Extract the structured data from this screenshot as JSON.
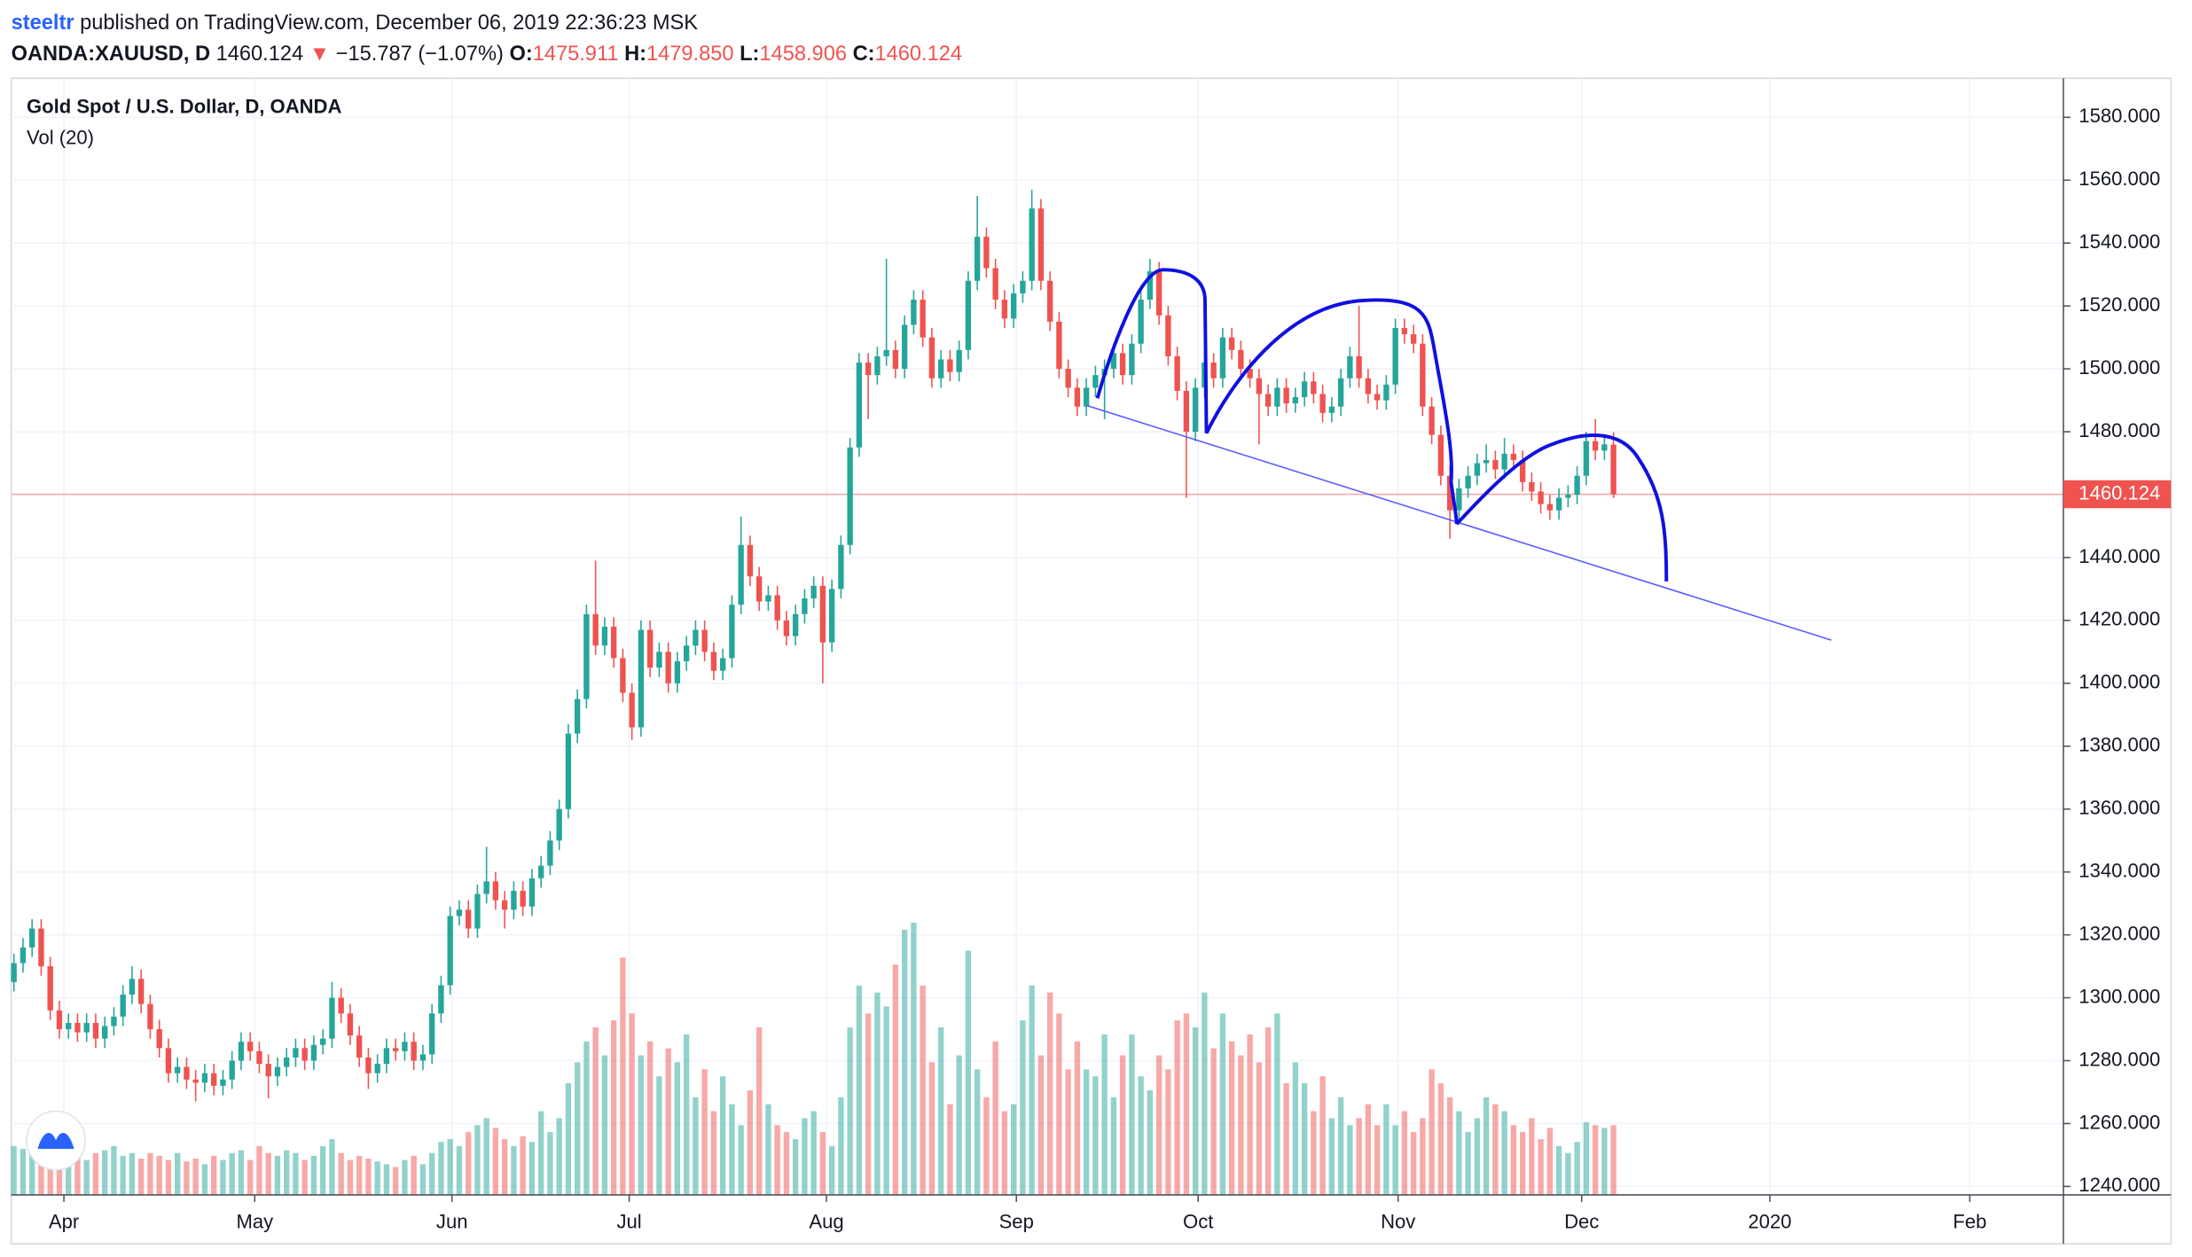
{
  "header": {
    "author": "steeltr",
    "published": "published on TradingView.com, December 06, 2019 22:36:23 MSK",
    "symbol": "OANDA:XAUUSD, D",
    "last": "1460.124",
    "arrow": "▼",
    "change": "−15.787 (−1.07%)",
    "o_label": "O:",
    "open": "1475.911",
    "h_label": "H:",
    "high": "1479.850",
    "l_label": "L:",
    "low": "1458.906",
    "c_label": "C:",
    "close": "1460.124"
  },
  "chart_data": {
    "type": "candlestick",
    "title": "Gold Spot / U.S. Dollar, D, OANDA",
    "volume_label": "Vol (20)",
    "up_color": "#26a69a",
    "down_color": "#ef5350",
    "last_price_color": "#ef5350",
    "grid": true,
    "xlim": [
      -0.3,
      225.5
    ],
    "xticks": [
      {
        "value": 5.5,
        "label": "Apr"
      },
      {
        "value": 26.5,
        "label": "May"
      },
      {
        "value": 48.2,
        "label": "Jun"
      },
      {
        "value": 67.7,
        "label": "Jul"
      },
      {
        "value": 89.4,
        "label": "Aug"
      },
      {
        "value": 110.3,
        "label": "Sep"
      },
      {
        "value": 130.3,
        "label": "Oct"
      },
      {
        "value": 152.3,
        "label": "Nov"
      },
      {
        "value": 172.5,
        "label": "Dec"
      },
      {
        "value": 193.2,
        "label": "2020"
      },
      {
        "value": 215.2,
        "label": "Feb"
      }
    ],
    "ylim": [
      1237.3,
      1592.4
    ],
    "yticks": [
      {
        "value": 1240,
        "label": "1240.000"
      },
      {
        "value": 1260,
        "label": "1260.000"
      },
      {
        "value": 1280,
        "label": "1280.000"
      },
      {
        "value": 1300,
        "label": "1300.000"
      },
      {
        "value": 1320,
        "label": "1320.000"
      },
      {
        "value": 1340,
        "label": "1340.000"
      },
      {
        "value": 1360,
        "label": "1360.000"
      },
      {
        "value": 1380,
        "label": "1380.000"
      },
      {
        "value": 1400,
        "label": "1400.000"
      },
      {
        "value": 1420,
        "label": "1420.000"
      },
      {
        "value": 1440,
        "label": "1440.000"
      },
      {
        "value": 1460,
        "label": "1460.000"
      },
      {
        "value": 1480,
        "label": "1480.000"
      },
      {
        "value": 1500,
        "label": "1500.000"
      },
      {
        "value": 1520,
        "label": "1520.000"
      },
      {
        "value": 1540,
        "label": "1540.000"
      },
      {
        "value": 1560,
        "label": "1560.000"
      },
      {
        "value": 1580,
        "label": "1580.000"
      }
    ],
    "vlim": [
      0,
      800
    ],
    "candles": [
      [
        1305,
        1314,
        1302,
        1311
      ],
      [
        1311,
        1319,
        1308,
        1316
      ],
      [
        1316,
        1325,
        1313,
        1322
      ],
      [
        1322,
        1325,
        1307,
        1310
      ],
      [
        1310,
        1313,
        1293,
        1296
      ],
      [
        1296,
        1299,
        1287,
        1290
      ],
      [
        1290,
        1295,
        1287,
        1292
      ],
      [
        1292,
        1295,
        1286,
        1289
      ],
      [
        1289,
        1295,
        1286,
        1292
      ],
      [
        1292,
        1295,
        1284,
        1287
      ],
      [
        1287,
        1294,
        1284,
        1291
      ],
      [
        1291,
        1297,
        1288,
        1294
      ],
      [
        1294,
        1304,
        1291,
        1301
      ],
      [
        1301,
        1310,
        1298,
        1306
      ],
      [
        1306,
        1309,
        1295,
        1298
      ],
      [
        1298,
        1301,
        1287,
        1290
      ],
      [
        1290,
        1293,
        1281,
        1284
      ],
      [
        1284,
        1287,
        1273,
        1276
      ],
      [
        1276,
        1281,
        1273,
        1278
      ],
      [
        1278,
        1281,
        1271,
        1274
      ],
      [
        1274,
        1277,
        1267,
        1273
      ],
      [
        1273,
        1279,
        1270,
        1276
      ],
      [
        1276,
        1279,
        1269,
        1272
      ],
      [
        1272,
        1277,
        1269,
        1274
      ],
      [
        1274,
        1283,
        1271,
        1280
      ],
      [
        1280,
        1289,
        1277,
        1286
      ],
      [
        1286,
        1289,
        1280,
        1283
      ],
      [
        1283,
        1286,
        1276,
        1279
      ],
      [
        1279,
        1282,
        1268,
        1275
      ],
      [
        1275,
        1281,
        1272,
        1278
      ],
      [
        1278,
        1284,
        1275,
        1281
      ],
      [
        1281,
        1287,
        1278,
        1284
      ],
      [
        1284,
        1287,
        1277,
        1280
      ],
      [
        1280,
        1288,
        1277,
        1285
      ],
      [
        1285,
        1290,
        1282,
        1287
      ],
      [
        1287,
        1305,
        1284,
        1300
      ],
      [
        1300,
        1303,
        1292,
        1295
      ],
      [
        1295,
        1298,
        1285,
        1288
      ],
      [
        1288,
        1291,
        1278,
        1281
      ],
      [
        1281,
        1284,
        1271,
        1276
      ],
      [
        1276,
        1282,
        1273,
        1279
      ],
      [
        1279,
        1287,
        1276,
        1284
      ],
      [
        1284,
        1287,
        1280,
        1283
      ],
      [
        1283,
        1289,
        1280,
        1286
      ],
      [
        1286,
        1289,
        1277,
        1280
      ],
      [
        1280,
        1285,
        1277,
        1282
      ],
      [
        1282,
        1298,
        1279,
        1295
      ],
      [
        1295,
        1307,
        1292,
        1304
      ],
      [
        1304,
        1329,
        1301,
        1326
      ],
      [
        1326,
        1331,
        1323,
        1328
      ],
      [
        1328,
        1331,
        1319,
        1322
      ],
      [
        1322,
        1336,
        1319,
        1333
      ],
      [
        1333,
        1348,
        1330,
        1337
      ],
      [
        1337,
        1340,
        1328,
        1331
      ],
      [
        1331,
        1334,
        1322,
        1328
      ],
      [
        1328,
        1337,
        1325,
        1334
      ],
      [
        1334,
        1337,
        1326,
        1329
      ],
      [
        1329,
        1341,
        1326,
        1338
      ],
      [
        1338,
        1345,
        1335,
        1342
      ],
      [
        1342,
        1353,
        1339,
        1350
      ],
      [
        1350,
        1363,
        1347,
        1360
      ],
      [
        1360,
        1387,
        1357,
        1384
      ],
      [
        1384,
        1398,
        1381,
        1395
      ],
      [
        1395,
        1425,
        1392,
        1422
      ],
      [
        1422,
        1439,
        1409,
        1412
      ],
      [
        1412,
        1421,
        1409,
        1418
      ],
      [
        1418,
        1421,
        1405,
        1408
      ],
      [
        1408,
        1411,
        1394,
        1397
      ],
      [
        1397,
        1400,
        1382,
        1386
      ],
      [
        1386,
        1420,
        1383,
        1417
      ],
      [
        1417,
        1420,
        1402,
        1405
      ],
      [
        1405,
        1413,
        1402,
        1410
      ],
      [
        1410,
        1413,
        1397,
        1400
      ],
      [
        1400,
        1410,
        1397,
        1407
      ],
      [
        1407,
        1415,
        1404,
        1412
      ],
      [
        1412,
        1420,
        1409,
        1417
      ],
      [
        1417,
        1420,
        1407,
        1410
      ],
      [
        1410,
        1413,
        1401,
        1404
      ],
      [
        1404,
        1411,
        1401,
        1408
      ],
      [
        1408,
        1428,
        1405,
        1425
      ],
      [
        1425,
        1453,
        1422,
        1444
      ],
      [
        1444,
        1447,
        1431,
        1434
      ],
      [
        1434,
        1437,
        1423,
        1426
      ],
      [
        1426,
        1431,
        1423,
        1428
      ],
      [
        1428,
        1431,
        1417,
        1420
      ],
      [
        1420,
        1423,
        1412,
        1415
      ],
      [
        1415,
        1425,
        1412,
        1422
      ],
      [
        1422,
        1430,
        1419,
        1427
      ],
      [
        1427,
        1434,
        1424,
        1431
      ],
      [
        1431,
        1434,
        1400,
        1413
      ],
      [
        1413,
        1433,
        1410,
        1430
      ],
      [
        1430,
        1447,
        1427,
        1444
      ],
      [
        1444,
        1478,
        1441,
        1475
      ],
      [
        1475,
        1505,
        1472,
        1502
      ],
      [
        1502,
        1505,
        1484,
        1498
      ],
      [
        1498,
        1507,
        1495,
        1504
      ],
      [
        1504,
        1535,
        1501,
        1506
      ],
      [
        1506,
        1509,
        1497,
        1500
      ],
      [
        1500,
        1517,
        1497,
        1514
      ],
      [
        1514,
        1525,
        1511,
        1522
      ],
      [
        1522,
        1525,
        1507,
        1510
      ],
      [
        1510,
        1513,
        1494,
        1497
      ],
      [
        1497,
        1506,
        1494,
        1503
      ],
      [
        1503,
        1506,
        1496,
        1499
      ],
      [
        1499,
        1509,
        1496,
        1506
      ],
      [
        1506,
        1531,
        1503,
        1528
      ],
      [
        1528,
        1555,
        1525,
        1542
      ],
      [
        1542,
        1545,
        1529,
        1532
      ],
      [
        1532,
        1535,
        1519,
        1522
      ],
      [
        1522,
        1525,
        1513,
        1516
      ],
      [
        1516,
        1527,
        1513,
        1524
      ],
      [
        1524,
        1531,
        1521,
        1528
      ],
      [
        1528,
        1557,
        1525,
        1551
      ],
      [
        1551,
        1554,
        1525,
        1528
      ],
      [
        1528,
        1531,
        1512,
        1515
      ],
      [
        1515,
        1518,
        1497,
        1500
      ],
      [
        1500,
        1503,
        1491,
        1494
      ],
      [
        1494,
        1497,
        1485,
        1488
      ],
      [
        1488,
        1497,
        1485,
        1494
      ],
      [
        1494,
        1501,
        1491,
        1498
      ],
      [
        1498,
        1503,
        1484,
        1500
      ],
      [
        1500,
        1508,
        1497,
        1505
      ],
      [
        1505,
        1508,
        1495,
        1498
      ],
      [
        1498,
        1511,
        1495,
        1508
      ],
      [
        1508,
        1525,
        1505,
        1522
      ],
      [
        1522,
        1535,
        1519,
        1531
      ],
      [
        1531,
        1534,
        1514,
        1517
      ],
      [
        1517,
        1520,
        1501,
        1504
      ],
      [
        1504,
        1507,
        1490,
        1493
      ],
      [
        1493,
        1496,
        1459,
        1480
      ],
      [
        1480,
        1497,
        1477,
        1494
      ],
      [
        1494,
        1505,
        1491,
        1502
      ],
      [
        1502,
        1505,
        1494,
        1497
      ],
      [
        1497,
        1513,
        1494,
        1510
      ],
      [
        1510,
        1513,
        1503,
        1506
      ],
      [
        1506,
        1509,
        1497,
        1500
      ],
      [
        1500,
        1503,
        1494,
        1497
      ],
      [
        1497,
        1500,
        1476,
        1492
      ],
      [
        1492,
        1495,
        1485,
        1488
      ],
      [
        1488,
        1497,
        1485,
        1494
      ],
      [
        1494,
        1497,
        1486,
        1489
      ],
      [
        1489,
        1494,
        1486,
        1491
      ],
      [
        1491,
        1499,
        1488,
        1496
      ],
      [
        1496,
        1499,
        1489,
        1492
      ],
      [
        1492,
        1495,
        1483,
        1486
      ],
      [
        1486,
        1491,
        1483,
        1488
      ],
      [
        1488,
        1500,
        1485,
        1497
      ],
      [
        1497,
        1507,
        1494,
        1504
      ],
      [
        1504,
        1520,
        1494,
        1497
      ],
      [
        1497,
        1500,
        1489,
        1492
      ],
      [
        1492,
        1495,
        1487,
        1490
      ],
      [
        1490,
        1498,
        1487,
        1495
      ],
      [
        1495,
        1516,
        1492,
        1513
      ],
      [
        1513,
        1516,
        1508,
        1511
      ],
      [
        1511,
        1514,
        1505,
        1508
      ],
      [
        1508,
        1511,
        1485,
        1488
      ],
      [
        1488,
        1491,
        1476,
        1479
      ],
      [
        1479,
        1482,
        1463,
        1466
      ],
      [
        1466,
        1469,
        1446,
        1455
      ],
      [
        1455,
        1465,
        1452,
        1462
      ],
      [
        1462,
        1469,
        1459,
        1466
      ],
      [
        1466,
        1473,
        1463,
        1470
      ],
      [
        1470,
        1476,
        1467,
        1471
      ],
      [
        1471,
        1474,
        1465,
        1468
      ],
      [
        1468,
        1478,
        1465,
        1473
      ],
      [
        1473,
        1476,
        1468,
        1471
      ],
      [
        1471,
        1474,
        1461,
        1464
      ],
      [
        1464,
        1467,
        1458,
        1461
      ],
      [
        1461,
        1464,
        1454,
        1457
      ],
      [
        1457,
        1460,
        1452,
        1455
      ],
      [
        1455,
        1462,
        1452,
        1459
      ],
      [
        1459,
        1463,
        1456,
        1460
      ],
      [
        1460,
        1469,
        1457,
        1466
      ],
      [
        1466,
        1480,
        1463,
        1477
      ],
      [
        1477,
        1484,
        1471,
        1474
      ],
      [
        1474,
        1479,
        1471,
        1476
      ],
      [
        1475.911,
        1479.85,
        1458.906,
        1460.124
      ]
    ],
    "volumes": [
      35,
      33,
      38,
      30,
      28,
      32,
      27,
      30,
      25,
      30,
      32,
      35,
      28,
      30,
      26,
      30,
      28,
      25,
      30,
      24,
      26,
      22,
      28,
      25,
      30,
      32,
      25,
      35,
      30,
      28,
      32,
      30,
      25,
      28,
      35,
      40,
      30,
      25,
      28,
      26,
      24,
      22,
      20,
      25,
      28,
      22,
      30,
      38,
      40,
      35,
      45,
      50,
      55,
      48,
      40,
      35,
      42,
      38,
      60,
      45,
      55,
      80,
      95,
      110,
      120,
      100,
      125,
      170,
      130,
      100,
      110,
      85,
      105,
      95,
      115,
      70,
      90,
      60,
      85,
      65,
      50,
      75,
      120,
      65,
      50,
      45,
      40,
      55,
      60,
      45,
      35,
      70,
      120,
      150,
      130,
      145,
      135,
      165,
      190,
      195,
      150,
      95,
      120,
      65,
      100,
      175,
      90,
      70,
      110,
      60,
      65,
      125,
      150,
      100,
      145,
      130,
      90,
      110,
      90,
      85,
      115,
      70,
      100,
      115,
      85,
      75,
      100,
      90,
      125,
      130,
      120,
      145,
      105,
      130,
      110,
      100,
      115,
      95,
      120,
      130,
      80,
      95,
      80,
      60,
      85,
      55,
      70,
      50,
      55,
      65,
      50,
      65,
      50,
      60,
      45,
      55,
      90,
      80,
      70,
      60,
      45,
      55,
      70,
      65,
      60,
      50,
      45,
      55,
      40,
      48,
      35,
      30,
      38,
      52,
      50,
      48,
      50
    ]
  }
}
